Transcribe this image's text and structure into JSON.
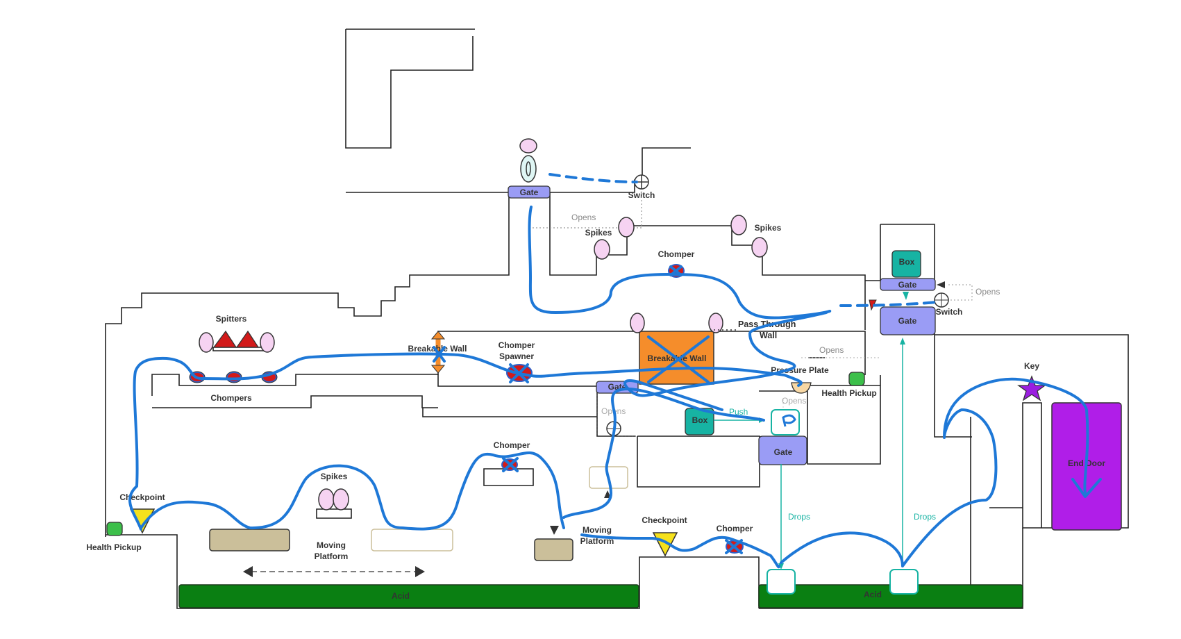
{
  "labels": {
    "spitters": "Spitters",
    "chompers": "Chompers",
    "breakable_wall_1": "Breakable Wall",
    "chomper_spawner_line1": "Chomper",
    "chomper_spawner_line2": "Spawner",
    "breakable_wall_2": "Breakable Wall",
    "chomper_top": "Chomper",
    "spikes_top_left": "Spikes",
    "spikes_top_right": "Spikes",
    "switch_top": "Switch",
    "gate_top": "Gate",
    "pass_through_line1": "Pass Through",
    "pass_through_line2": "Wall",
    "pressure_plate": "Pressure Plate",
    "health_pickup_right": "Health Pickup",
    "gate_mid": "Gate",
    "box_mid": "Box",
    "gate_lower": "Gate",
    "box_right": "Box",
    "gate_right_small": "Gate",
    "gate_right_big": "Gate",
    "switch_right": "Switch",
    "checkpoint_left": "Checkpoint",
    "health_pickup_left": "Health Pickup",
    "spikes_mid": "Spikes",
    "moving_platform_1_line1": "Moving",
    "moving_platform_1_line2": "Platform",
    "chomper_mid": "Chomper",
    "moving_platform_2_line1": "Moving",
    "moving_platform_2_line2": "Platform",
    "checkpoint_right": "Checkpoint",
    "chomper_low": "Chomper",
    "acid_left": "Acid",
    "acid_right": "Acid",
    "key": "Key",
    "end_door": "End Door"
  },
  "connectors": {
    "opens_top": "Opens",
    "opens_right_gate": "Opens",
    "opens_pressure": "Opens",
    "opens_pressure_2": "Opens",
    "opens_mid": "Opens",
    "push": "Push",
    "drops_1": "Drops",
    "drops_2": "Drops"
  },
  "colors": {
    "gate": "#9a9cf5",
    "box": "#17b3a3",
    "acid": "#0a7f12",
    "breakable": "#f58d2b",
    "route": "#1e78d7",
    "end_door": "#b01ee8",
    "checkpoint": "#f5e11c",
    "health": "#3cbf4a",
    "spike": "#f6d3f2",
    "enemy": "#d21a1a",
    "platform": "#cbbf9a"
  }
}
